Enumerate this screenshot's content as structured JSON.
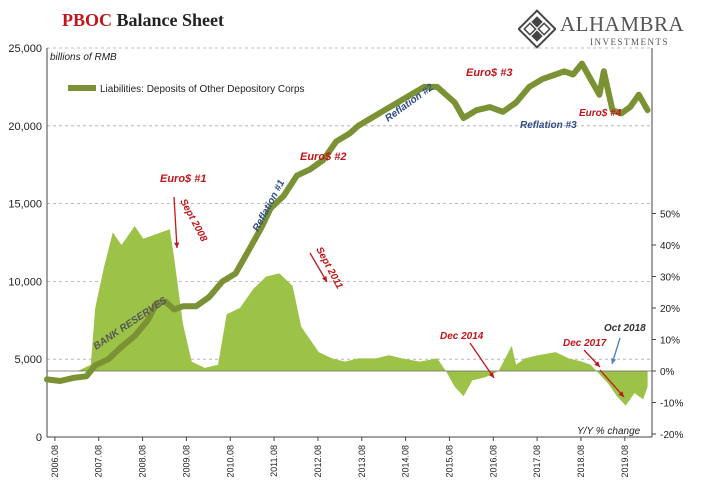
{
  "title": {
    "bold_part": "PBOC",
    "rest": "Balance Sheet"
  },
  "logo": {
    "name": "ALHAMBRA",
    "sub": "INVESTMENTS",
    "icon": "alhambra-diamond-logo-icon"
  },
  "colors": {
    "line": "#7a9234",
    "area": "#9dc248",
    "annotation_red": "#c0161b",
    "annotation_blue": "#2e4a86",
    "grid": "#aaaaaa"
  },
  "chart_data": {
    "type": "line",
    "title": "PBOC Balance Sheet",
    "left_axis_label": "billions of RMB",
    "right_axis_label": "Y/Y % change",
    "left_ylim": [
      0,
      25000
    ],
    "left_ticks": [
      "0",
      "5,000",
      "10,000",
      "15,000",
      "20,000",
      "25,000"
    ],
    "right_ylim": [
      -20,
      50
    ],
    "right_ticks": [
      "-20%",
      "-10%",
      "0%",
      "10%",
      "20%",
      "30%",
      "40%",
      "50%"
    ],
    "x_ticks": [
      "2006.08",
      "2007.08",
      "2008.08",
      "2009.08",
      "2010.08",
      "2011.08",
      "2012.08",
      "2013.08",
      "2014.08",
      "2015.08",
      "2016.08",
      "2017.08",
      "2018.08",
      "2019.08"
    ],
    "x_range": [
      2005.9,
      2019.7
    ],
    "grid": "horizontal dashed",
    "legend": {
      "position": "top-left",
      "label": "Liabilities: Deposits of Other Depository Corps"
    },
    "series": [
      {
        "name": "Liabilities: Deposits of Other Depository Corps",
        "axis": "left",
        "type": "line",
        "x": [
          2005.9,
          2006.2,
          2006.5,
          2006.8,
          2007.0,
          2007.3,
          2007.6,
          2007.9,
          2008.2,
          2008.4,
          2008.6,
          2008.8,
          2009.0,
          2009.3,
          2009.6,
          2009.9,
          2010.2,
          2010.5,
          2010.8,
          2011.0,
          2011.3,
          2011.6,
          2011.9,
          2012.2,
          2012.5,
          2012.8,
          2013.0,
          2013.3,
          2013.6,
          2013.9,
          2014.2,
          2014.5,
          2014.8,
          2015.0,
          2015.2,
          2015.4,
          2015.7,
          2016.0,
          2016.3,
          2016.6,
          2016.9,
          2017.2,
          2017.5,
          2017.7,
          2017.9,
          2018.1,
          2018.3,
          2018.5,
          2018.6,
          2018.8,
          2019.0,
          2019.2,
          2019.4,
          2019.6
        ],
        "values": [
          3700,
          3600,
          3800,
          3900,
          4600,
          5000,
          5800,
          6500,
          7500,
          8600,
          8700,
          8200,
          8400,
          8400,
          9000,
          10000,
          10500,
          12000,
          13500,
          14700,
          15500,
          16800,
          17200,
          17800,
          19000,
          19500,
          20000,
          20500,
          21000,
          21500,
          22000,
          22500,
          22500,
          22000,
          21500,
          20500,
          21000,
          21200,
          20900,
          21500,
          22500,
          23000,
          23300,
          23500,
          23300,
          24000,
          23000,
          22000,
          23500,
          21000,
          20800,
          21200,
          22000,
          21000
        ]
      },
      {
        "name": "Y/Y % change",
        "axis": "right",
        "type": "area",
        "x": [
          2005.9,
          2006.6,
          2006.9,
          2007.0,
          2007.2,
          2007.4,
          2007.6,
          2007.9,
          2008.1,
          2008.3,
          2008.5,
          2008.7,
          2008.8,
          2009.0,
          2009.2,
          2009.5,
          2009.8,
          2010.0,
          2010.3,
          2010.6,
          2010.9,
          2011.2,
          2011.5,
          2011.7,
          2011.9,
          2012.1,
          2012.4,
          2012.7,
          2013.0,
          2013.4,
          2013.7,
          2014.0,
          2014.4,
          2014.8,
          2015.0,
          2015.2,
          2015.4,
          2015.6,
          2015.9,
          2016.2,
          2016.5,
          2016.6,
          2016.8,
          2017.1,
          2017.5,
          2017.8,
          2018.1,
          2018.3,
          2018.5,
          2018.7,
          2018.9,
          2019.1,
          2019.3,
          2019.5,
          2019.6
        ],
        "values": [
          0,
          0,
          2,
          20,
          33,
          44,
          40,
          46,
          42,
          43,
          44,
          45,
          36,
          15,
          3,
          1,
          2,
          18,
          20,
          26,
          30,
          31,
          27,
          14,
          10,
          6,
          4,
          3,
          4,
          4,
          5,
          4,
          3,
          4,
          0,
          -5,
          -8,
          -3,
          -2,
          0,
          8,
          2,
          4,
          5,
          6,
          4,
          3,
          2,
          -1,
          -4,
          -8,
          -11,
          -7,
          -9,
          -5
        ]
      }
    ],
    "annotations": [
      {
        "text": "Euro$ #1",
        "color": "red"
      },
      {
        "text": "Sept 2008",
        "color": "red"
      },
      {
        "text": "Reflation #1",
        "color": "blue"
      },
      {
        "text": "Euro$ #2",
        "color": "red"
      },
      {
        "text": "Sept 2011",
        "color": "red"
      },
      {
        "text": "Reflation #2",
        "color": "blue"
      },
      {
        "text": "Euro$ #3",
        "color": "red"
      },
      {
        "text": "Reflation #3",
        "color": "blue"
      },
      {
        "text": "Euro$ #4",
        "color": "red"
      },
      {
        "text": "BANK RESERVES",
        "color": "gray"
      },
      {
        "text": "Dec 2014",
        "color": "red"
      },
      {
        "text": "Dec 2017",
        "color": "red"
      },
      {
        "text": "Oct 2018",
        "color": "blue"
      }
    ]
  }
}
